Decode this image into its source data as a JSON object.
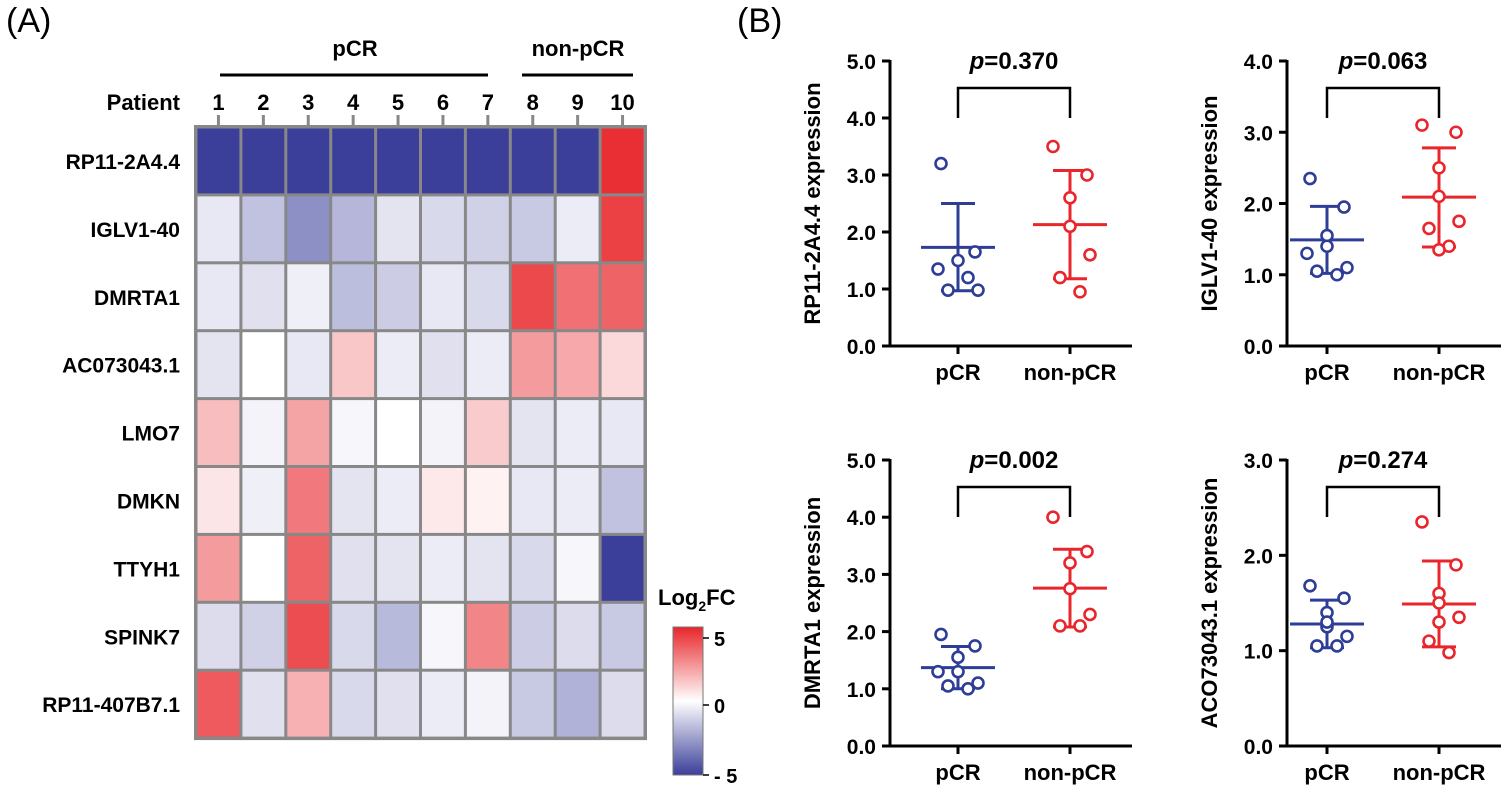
{
  "panels": {
    "a": "(A)",
    "b": "(B)"
  },
  "heatmap": {
    "group_labels": [
      "pCR",
      "non-pCR"
    ],
    "patient_header": "Patient",
    "patients": [
      "1",
      "2",
      "3",
      "4",
      "5",
      "6",
      "7",
      "8",
      "9",
      "10"
    ],
    "genes": [
      "RP11-2A4.4",
      "IGLV1-40",
      "DMRTA1",
      "AC073043.1",
      "LMO7",
      "DMKN",
      "TTYH1",
      "SPINK7",
      "RP11-407B7.1"
    ],
    "legend_title_main": "Log",
    "legend_title_sub": "2",
    "legend_title_tail": "FC",
    "legend_ticks": [
      "5",
      "0",
      "- 5"
    ],
    "legend_range": [
      -5,
      5
    ],
    "colors": {
      "low": "#3b3f9a",
      "mid": "#ffffff",
      "high": "#e8262b"
    }
  },
  "chart_data": [
    {
      "type": "heatmap",
      "title": "",
      "x": [
        "1",
        "2",
        "3",
        "4",
        "5",
        "6",
        "7",
        "8",
        "9",
        "10"
      ],
      "y": [
        "RP11-2A4.4",
        "IGLV1-40",
        "DMRTA1",
        "AC073043.1",
        "LMO7",
        "DMKN",
        "TTYH1",
        "SPINK7",
        "RP11-407B7.1"
      ],
      "values": [
        [
          -5,
          -5,
          -5,
          -5,
          -5,
          -5,
          -5,
          -5,
          -5,
          4.8
        ],
        [
          -0.6,
          -1.6,
          -2.9,
          -1.9,
          -0.7,
          -1.0,
          -1.2,
          -1.4,
          -0.5,
          4.4
        ],
        [
          -0.6,
          -0.8,
          -0.4,
          -1.7,
          -1.3,
          -0.6,
          -1.0,
          4.2,
          3.3,
          3.6
        ],
        [
          -0.7,
          0,
          -0.6,
          1.3,
          -0.5,
          -0.8,
          -0.5,
          2.3,
          2.0,
          0.9
        ],
        [
          1.5,
          -0.3,
          2.1,
          -0.2,
          0,
          -0.3,
          1.2,
          -0.7,
          -0.5,
          -0.6
        ],
        [
          0.6,
          -0.4,
          3.1,
          -0.7,
          -0.5,
          0.5,
          0.3,
          -0.6,
          -0.5,
          -1.6
        ],
        [
          2.3,
          0,
          3.6,
          -0.8,
          -0.7,
          -0.5,
          -0.7,
          -1.0,
          -0.2,
          -5
        ],
        [
          -0.9,
          -1.2,
          4.1,
          -1.0,
          -1.8,
          -0.2,
          2.8,
          -1.3,
          -0.9,
          -1.4
        ],
        [
          3.8,
          -0.8,
          1.8,
          -1.0,
          -0.8,
          -0.5,
          -0.3,
          -1.4,
          -2.0,
          -0.9
        ]
      ],
      "zlim": [
        -5,
        5
      ],
      "colorbar_title": "Log2FC",
      "groups": [
        {
          "name": "pCR",
          "columns": [
            "1",
            "7"
          ]
        },
        {
          "name": "non-pCR",
          "columns": [
            "8",
            "10"
          ]
        }
      ]
    },
    {
      "type": "scatter",
      "title": "",
      "pvalue": "=0.370",
      "p_letter": "p",
      "ylabel": "RP11-2A4.4 expression",
      "categories": [
        "pCR",
        "non-pCR"
      ],
      "ylim": [
        0,
        5
      ],
      "yticks": [
        "0.0",
        "1.0",
        "2.0",
        "3.0",
        "4.0",
        "5.0"
      ],
      "series": [
        {
          "name": "pCR",
          "color": "#2e3d96",
          "points": [
            3.2,
            1.65,
            1.5,
            1.35,
            0.98,
            0.98,
            1.2
          ],
          "mean": 1.73,
          "sd_low": 0.97,
          "sd_high": 2.5
        },
        {
          "name": "non-pCR",
          "color": "#e8262b",
          "points": [
            3.5,
            3.0,
            2.6,
            2.1,
            1.6,
            1.2,
            0.95
          ],
          "mean": 2.13,
          "sd_low": 1.18,
          "sd_high": 3.08
        }
      ]
    },
    {
      "type": "scatter",
      "title": "",
      "pvalue": "=0.063",
      "p_letter": "p",
      "ylabel": "IGLV1-40 expression",
      "categories": [
        "pCR",
        "non-pCR"
      ],
      "ylim": [
        0,
        4
      ],
      "yticks": [
        "0.0",
        "1.0",
        "2.0",
        "3.0",
        "4.0"
      ],
      "series": [
        {
          "name": "pCR",
          "color": "#2e3d96",
          "points": [
            2.35,
            1.95,
            1.55,
            1.3,
            1.1,
            1.05,
            1.0,
            1.4
          ],
          "mean": 1.49,
          "sd_low": 1.02,
          "sd_high": 1.96
        },
        {
          "name": "non-pCR",
          "color": "#e8262b",
          "points": [
            3.1,
            3.0,
            2.5,
            2.1,
            1.75,
            1.65,
            1.4,
            1.35
          ],
          "mean": 2.09,
          "sd_low": 1.39,
          "sd_high": 2.78
        }
      ]
    },
    {
      "type": "scatter",
      "title": "",
      "pvalue": "=0.002",
      "p_letter": "p",
      "ylabel": "DMRTA1 expression",
      "categories": [
        "pCR",
        "non-pCR"
      ],
      "ylim": [
        0,
        5
      ],
      "yticks": [
        "0.0",
        "1.0",
        "2.0",
        "3.0",
        "4.0",
        "5.0"
      ],
      "series": [
        {
          "name": "pCR",
          "color": "#2e3d96",
          "points": [
            1.95,
            1.75,
            1.55,
            1.3,
            1.1,
            1.05,
            1.0,
            1.3
          ],
          "mean": 1.37,
          "sd_low": 1.0,
          "sd_high": 1.74
        },
        {
          "name": "non-pCR",
          "color": "#e8262b",
          "points": [
            4.0,
            3.4,
            3.2,
            2.75,
            2.3,
            2.1,
            2.1
          ],
          "mean": 2.76,
          "sd_low": 2.08,
          "sd_high": 3.44
        }
      ]
    },
    {
      "type": "scatter",
      "title": "",
      "pvalue": "=0.274",
      "p_letter": "p",
      "ylabel": "ACO73043.1 expression",
      "categories": [
        "pCR",
        "non-pCR"
      ],
      "ylim": [
        0,
        3
      ],
      "yticks": [
        "0.0",
        "1.0",
        "2.0",
        "3.0"
      ],
      "series": [
        {
          "name": "pCR",
          "color": "#2e3d96",
          "points": [
            1.68,
            1.55,
            1.4,
            1.25,
            1.15,
            1.05,
            1.05,
            1.3
          ],
          "mean": 1.28,
          "sd_low": 1.03,
          "sd_high": 1.53
        },
        {
          "name": "non-pCR",
          "color": "#e8262b",
          "points": [
            2.35,
            1.9,
            1.6,
            1.5,
            1.35,
            1.1,
            0.98,
            1.3
          ],
          "mean": 1.49,
          "sd_low": 1.04,
          "sd_high": 1.94
        }
      ]
    }
  ]
}
